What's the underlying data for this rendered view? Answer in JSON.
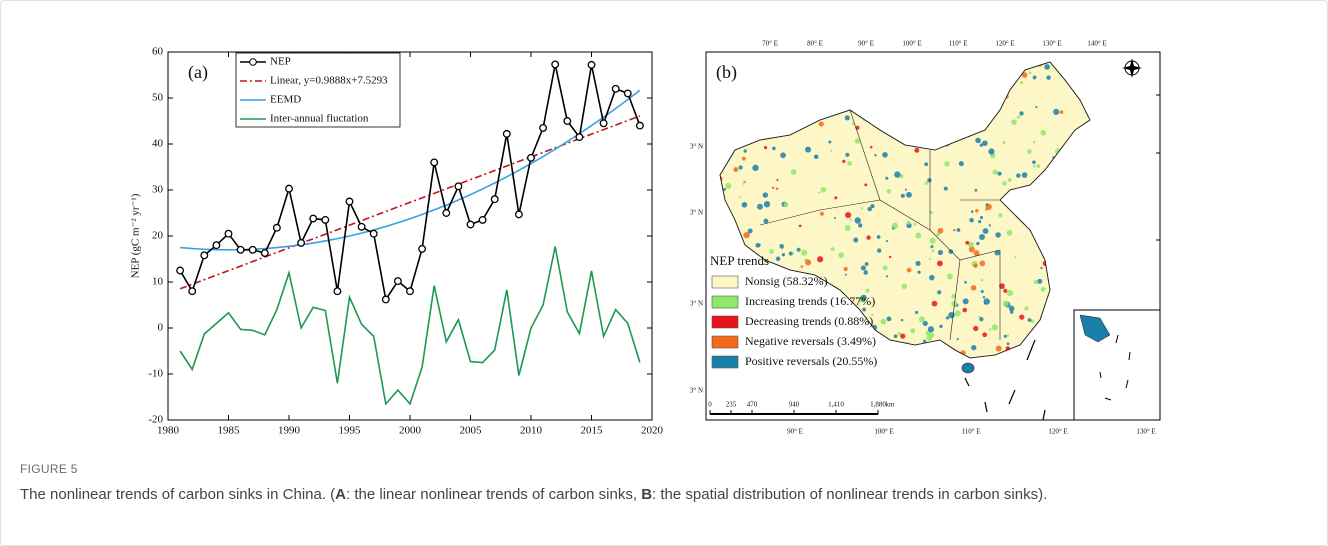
{
  "figure": {
    "label": "FIGURE 5",
    "caption": [
      {
        "text": "The nonlinear trends of carbon sinks in China. (",
        "bold": false
      },
      {
        "text": "A",
        "bold": true
      },
      {
        "text": ": the linear nonlinear trends of carbon sinks, ",
        "bold": false
      },
      {
        "text": "B",
        "bold": true
      },
      {
        "text": ": the spatial distribution of nonlinear trends in carbon sinks).",
        "bold": false
      }
    ]
  },
  "chart_data": {
    "type": "line",
    "panel_label": "(a)",
    "y_label": "NEP  (gC m⁻² yr⁻¹)",
    "x": [
      1981,
      1982,
      1983,
      1984,
      1985,
      1986,
      1987,
      1988,
      1989,
      1990,
      1991,
      1992,
      1993,
      1994,
      1995,
      1996,
      1997,
      1998,
      1999,
      2000,
      2001,
      2002,
      2003,
      2004,
      2005,
      2006,
      2007,
      2008,
      2009,
      2010,
      2011,
      2012,
      2013,
      2014,
      2015,
      2016,
      2017,
      2018,
      2019
    ],
    "xlim": [
      1980,
      2020
    ],
    "xticks": [
      1980,
      1985,
      1990,
      1995,
      2000,
      2005,
      2010,
      2015,
      2020
    ],
    "ylim": [
      -20,
      60
    ],
    "yticks": [
      -20,
      -10,
      0,
      10,
      20,
      30,
      40,
      50,
      60
    ],
    "series": [
      {
        "name": "NEP",
        "color": "#000000",
        "marker": "circle",
        "values": [
          12.5,
          8,
          15.8,
          18,
          20.5,
          17,
          17,
          16.3,
          21.8,
          30.3,
          18.5,
          23.8,
          23.5,
          8,
          27.5,
          22,
          20.5,
          6.2,
          10.2,
          8,
          17.2,
          36,
          25,
          30.8,
          22.5,
          23.5,
          28,
          42.2,
          24.7,
          37,
          43.5,
          57.3,
          45,
          41.5,
          57.2,
          44.5,
          52,
          51,
          44
        ]
      },
      {
        "name": "Linear, y=0.9888x+7.5293",
        "color": "#c0141c",
        "dash": "dashdot",
        "values": [
          8.52,
          9.51,
          10.5,
          11.49,
          12.47,
          13.46,
          14.45,
          15.44,
          16.43,
          17.42,
          18.41,
          19.4,
          20.38,
          21.37,
          22.36,
          23.35,
          24.34,
          25.33,
          26.32,
          27.31,
          28.29,
          29.28,
          30.27,
          31.26,
          32.25,
          33.24,
          34.23,
          35.22,
          36.21,
          37.19,
          38.18,
          39.17,
          40.16,
          41.15,
          42.14,
          43.13,
          44.12,
          45.1,
          46.09
        ]
      },
      {
        "name": "EEMD",
        "color": "#3aa0e0",
        "values": [
          17.48,
          17.27,
          17.12,
          17.03,
          17,
          17.03,
          17.12,
          17.27,
          17.48,
          17.75,
          18.08,
          18.47,
          18.92,
          19.43,
          20,
          20.63,
          21.32,
          22.07,
          22.88,
          23.75,
          24.68,
          25.67,
          26.72,
          27.83,
          29,
          30.23,
          31.52,
          32.87,
          34.28,
          35.75,
          37.28,
          38.87,
          40.52,
          42.23,
          44,
          45.83,
          47.72,
          49.67,
          51.68
        ]
      },
      {
        "name": "Inter-annual fluctation",
        "color": "#1a9a50",
        "values": [
          -5,
          -9,
          -1.3,
          1,
          3.3,
          -0.3,
          -0.5,
          -1.5,
          4,
          12,
          0,
          4.5,
          3.8,
          -12,
          6.7,
          0.8,
          -1.8,
          -16.5,
          -13.5,
          -16.5,
          -8.5,
          9.2,
          -3,
          1.8,
          -7.3,
          -7.5,
          -4.8,
          8.3,
          -10.3,
          0,
          5,
          17.7,
          3.5,
          -1.2,
          12.4,
          -1.8,
          4,
          1,
          -7.5
        ]
      }
    ]
  },
  "map": {
    "panel_label": "(b)",
    "top_labels": [
      "70° E",
      "80° E",
      "90° E",
      "100° E",
      "110° E",
      "120° E",
      "130° E",
      "140° E"
    ],
    "bottom_labels": [
      "90° E",
      "100° E",
      "110° E",
      "120° E",
      "130° E"
    ],
    "left_labels": [
      "3° N",
      "3° N",
      "3° N",
      "3° N"
    ],
    "legend": {
      "title": "NEP trends",
      "items": [
        {
          "label": "Nonsig (58.32%)",
          "color": "#fdf7c8"
        },
        {
          "label": "Increasing trends (16.77%)",
          "color": "#8ee86a"
        },
        {
          "label": "Decreasing trends (0.88%)",
          "color": "#e8141c"
        },
        {
          "label": "Negative reversals (3.49%)",
          "color": "#f46a1a"
        },
        {
          "label": "Positive reversals (20.55%)",
          "color": "#1a7fa8"
        }
      ]
    },
    "scale_labels": [
      "0",
      "235",
      "470",
      "940",
      "1,410",
      "1,880",
      "km"
    ]
  }
}
